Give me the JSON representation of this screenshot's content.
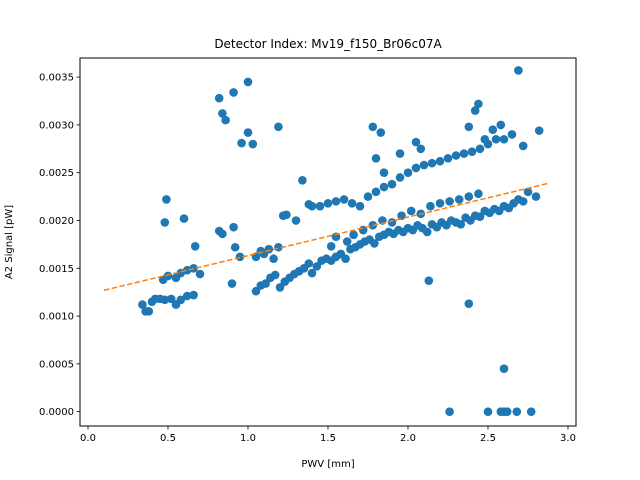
{
  "chart_data": {
    "type": "scatter",
    "title": "Detector Index: Mv19_f150_Br06c07A",
    "xlabel": "PWV [mm]",
    "ylabel": "A2 Signal [pW]",
    "xlim": [
      -0.05,
      3.05
    ],
    "ylim": [
      -0.00015,
      0.0037
    ],
    "xticks": [
      0.0,
      0.5,
      1.0,
      1.5,
      2.0,
      2.5,
      3.0
    ],
    "xtick_labels": [
      "0.0",
      "0.5",
      "1.0",
      "1.5",
      "2.0",
      "2.5",
      "3.0"
    ],
    "yticks": [
      0.0,
      0.0005,
      0.001,
      0.0015,
      0.002,
      0.0025,
      0.003,
      0.0035
    ],
    "ytick_labels": [
      "0.0000",
      "0.0005",
      "0.0010",
      "0.0015",
      "0.0020",
      "0.0025",
      "0.0030",
      "0.0035"
    ],
    "grid": false,
    "colors": {
      "points": "#1f77b4",
      "fit": "#ff7f0e"
    },
    "series": [
      {
        "name": "measurements",
        "kind": "scatter",
        "points": [
          [
            0.34,
            0.00112
          ],
          [
            0.36,
            0.00105
          ],
          [
            0.38,
            0.00105
          ],
          [
            0.4,
            0.00115
          ],
          [
            0.42,
            0.00118
          ],
          [
            0.45,
            0.00118
          ],
          [
            0.48,
            0.00117
          ],
          [
            0.52,
            0.00118
          ],
          [
            0.55,
            0.00112
          ],
          [
            0.58,
            0.00117
          ],
          [
            0.62,
            0.00121
          ],
          [
            0.66,
            0.00122
          ],
          [
            0.47,
            0.00138
          ],
          [
            0.5,
            0.00142
          ],
          [
            0.55,
            0.0014
          ],
          [
            0.58,
            0.00145
          ],
          [
            0.62,
            0.00148
          ],
          [
            0.66,
            0.0015
          ],
          [
            0.7,
            0.00144
          ],
          [
            0.67,
            0.00173
          ],
          [
            0.6,
            0.00202
          ],
          [
            0.48,
            0.00198
          ],
          [
            0.49,
            0.00222
          ],
          [
            0.82,
            0.00189
          ],
          [
            0.84,
            0.00186
          ],
          [
            0.84,
            0.00312
          ],
          [
            0.86,
            0.00305
          ],
          [
            0.82,
            0.00328
          ],
          [
            0.91,
            0.00334
          ],
          [
            0.96,
            0.00281
          ],
          [
            1.0,
            0.00345
          ],
          [
            1.0,
            0.00292
          ],
          [
            1.03,
            0.0028
          ],
          [
            1.19,
            0.00298
          ],
          [
            0.91,
            0.00193
          ],
          [
            0.9,
            0.00134
          ],
          [
            0.92,
            0.00172
          ],
          [
            0.95,
            0.00162
          ],
          [
            1.05,
            0.00162
          ],
          [
            1.08,
            0.00168
          ],
          [
            1.1,
            0.00165
          ],
          [
            1.13,
            0.0017
          ],
          [
            1.16,
            0.0016
          ],
          [
            1.19,
            0.00172
          ],
          [
            1.22,
            0.00205
          ],
          [
            1.24,
            0.00206
          ],
          [
            1.3,
            0.002
          ],
          [
            1.34,
            0.00242
          ],
          [
            1.38,
            0.00217
          ],
          [
            1.4,
            0.00215
          ],
          [
            1.05,
            0.00126
          ],
          [
            1.08,
            0.00132
          ],
          [
            1.11,
            0.00134
          ],
          [
            1.14,
            0.0014
          ],
          [
            1.17,
            0.00143
          ],
          [
            1.2,
            0.0013
          ],
          [
            1.23,
            0.00136
          ],
          [
            1.26,
            0.0014
          ],
          [
            1.29,
            0.00144
          ],
          [
            1.32,
            0.00147
          ],
          [
            1.35,
            0.0015
          ],
          [
            1.38,
            0.00155
          ],
          [
            1.4,
            0.00145
          ],
          [
            1.43,
            0.00152
          ],
          [
            1.46,
            0.00158
          ],
          [
            1.49,
            0.0016
          ],
          [
            1.52,
            0.00158
          ],
          [
            1.55,
            0.00162
          ],
          [
            1.58,
            0.00165
          ],
          [
            1.61,
            0.0016
          ],
          [
            1.64,
            0.0017
          ],
          [
            1.67,
            0.00172
          ],
          [
            1.7,
            0.00175
          ],
          [
            1.73,
            0.00178
          ],
          [
            1.76,
            0.0018
          ],
          [
            1.79,
            0.00176
          ],
          [
            1.82,
            0.00183
          ],
          [
            1.85,
            0.00185
          ],
          [
            1.88,
            0.00188
          ],
          [
            1.91,
            0.00186
          ],
          [
            1.94,
            0.0019
          ],
          [
            1.97,
            0.00188
          ],
          [
            2.0,
            0.00192
          ],
          [
            2.03,
            0.0019
          ],
          [
            2.06,
            0.00195
          ],
          [
            2.09,
            0.00192
          ],
          [
            2.12,
            0.00188
          ],
          [
            2.15,
            0.00196
          ],
          [
            2.18,
            0.00193
          ],
          [
            2.21,
            0.00198
          ],
          [
            2.24,
            0.00195
          ],
          [
            2.27,
            0.002
          ],
          [
            2.3,
            0.00198
          ],
          [
            2.33,
            0.00196
          ],
          [
            2.36,
            0.00203
          ],
          [
            2.39,
            0.002
          ],
          [
            2.42,
            0.00205
          ],
          [
            2.45,
            0.00204
          ],
          [
            2.48,
            0.0021
          ],
          [
            2.51,
            0.00208
          ],
          [
            2.54,
            0.00212
          ],
          [
            2.57,
            0.0021
          ],
          [
            2.6,
            0.00215
          ],
          [
            2.63,
            0.00213
          ],
          [
            2.66,
            0.00218
          ],
          [
            2.69,
            0.00222
          ],
          [
            2.72,
            0.0022
          ],
          [
            2.75,
            0.0023
          ],
          [
            2.8,
            0.00225
          ],
          [
            1.45,
            0.00215
          ],
          [
            1.5,
            0.00218
          ],
          [
            1.55,
            0.0022
          ],
          [
            1.6,
            0.00222
          ],
          [
            1.65,
            0.00218
          ],
          [
            1.7,
            0.00215
          ],
          [
            1.75,
            0.00225
          ],
          [
            1.8,
            0.0023
          ],
          [
            1.85,
            0.00235
          ],
          [
            1.9,
            0.00238
          ],
          [
            1.95,
            0.00245
          ],
          [
            2.0,
            0.0025
          ],
          [
            2.05,
            0.00255
          ],
          [
            2.1,
            0.00258
          ],
          [
            2.15,
            0.0026
          ],
          [
            2.2,
            0.00262
          ],
          [
            2.25,
            0.00265
          ],
          [
            2.3,
            0.00268
          ],
          [
            2.35,
            0.0027
          ],
          [
            2.4,
            0.00272
          ],
          [
            2.45,
            0.00275
          ],
          [
            2.5,
            0.0028
          ],
          [
            2.55,
            0.00285
          ],
          [
            1.78,
            0.00298
          ],
          [
            1.83,
            0.00292
          ],
          [
            1.8,
            0.00265
          ],
          [
            1.85,
            0.0025
          ],
          [
            1.95,
            0.0027
          ],
          [
            2.05,
            0.00282
          ],
          [
            2.08,
            0.00275
          ],
          [
            2.38,
            0.00298
          ],
          [
            2.44,
            0.00322
          ],
          [
            2.42,
            0.00315
          ],
          [
            2.48,
            0.00285
          ],
          [
            2.53,
            0.00295
          ],
          [
            2.58,
            0.003
          ],
          [
            2.6,
            0.00285
          ],
          [
            2.65,
            0.0029
          ],
          [
            2.72,
            0.00278
          ],
          [
            2.82,
            0.00294
          ],
          [
            2.69,
            0.00357
          ],
          [
            1.52,
            0.00173
          ],
          [
            1.55,
            0.00183
          ],
          [
            1.62,
            0.00178
          ],
          [
            1.66,
            0.00185
          ],
          [
            1.72,
            0.0019
          ],
          [
            1.78,
            0.00195
          ],
          [
            1.84,
            0.002
          ],
          [
            1.9,
            0.00198
          ],
          [
            1.96,
            0.00205
          ],
          [
            2.02,
            0.0021
          ],
          [
            2.08,
            0.00207
          ],
          [
            2.14,
            0.00215
          ],
          [
            2.2,
            0.00218
          ],
          [
            2.26,
            0.0022
          ],
          [
            2.32,
            0.00222
          ],
          [
            2.38,
            0.00225
          ],
          [
            2.44,
            0.00228
          ],
          [
            2.13,
            0.00137
          ],
          [
            2.38,
            0.00113
          ],
          [
            2.6,
            0.00045
          ],
          [
            2.26,
            0.0
          ],
          [
            2.5,
            0.0
          ],
          [
            2.58,
            0.0
          ],
          [
            2.6,
            0.0
          ],
          [
            2.62,
            0.0
          ],
          [
            2.68,
            0.0
          ],
          [
            2.77,
            0.0
          ]
        ]
      },
      {
        "name": "fit",
        "kind": "line",
        "style": "dashed",
        "points": [
          [
            0.1,
            0.00127
          ],
          [
            2.88,
            0.00239
          ]
        ]
      }
    ]
  }
}
